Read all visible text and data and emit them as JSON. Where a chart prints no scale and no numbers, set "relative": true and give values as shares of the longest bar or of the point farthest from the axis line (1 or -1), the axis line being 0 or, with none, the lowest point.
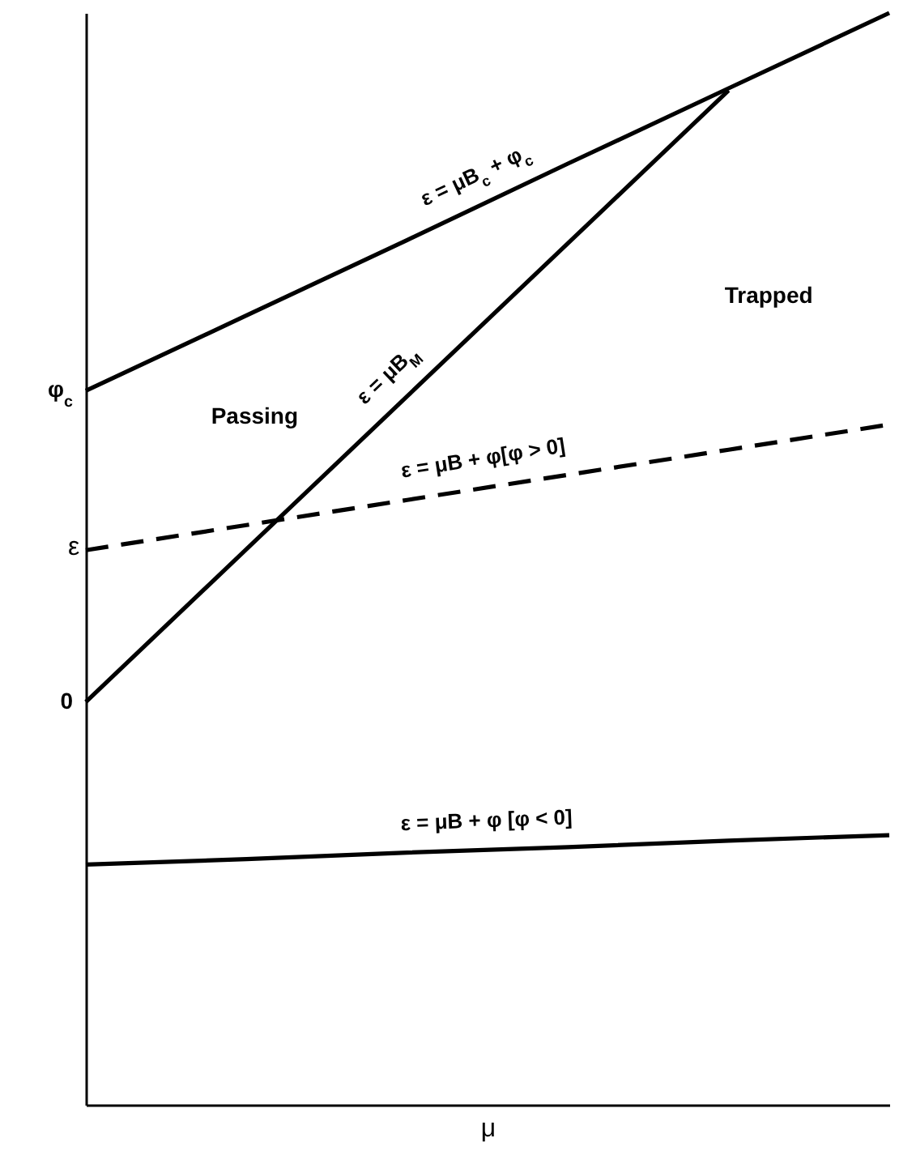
{
  "chart_data": {
    "type": "line",
    "relative": true,
    "xlabel": "μ",
    "ylabel": "ε",
    "categories": [
      null,
      null,
      null,
      null,
      null,
      null
    ],
    "series": [
      {
        "name": "ε = μB$_{c}$ + φ$_{c}$",
        "color": "#000000",
        "line_style": "solid",
        "values": [
          0.654,
          0.723,
          0.792,
          0.862,
          0.931,
          1.0
        ]
      },
      {
        "name": "ε = μB$_{M}$",
        "color": "#000000",
        "line_style": "solid",
        "values": [
          0.369,
          0.509,
          0.649,
          0.789,
          0.929,
          null
        ]
      },
      {
        "name": "ε = μB + φ[φ > 0]",
        "color": "#000000",
        "line_style": "dashed",
        "values": [
          0.508,
          0.531,
          0.554,
          0.577,
          0.6,
          0.623
        ]
      },
      {
        "name": "ε = μB + φ [φ < 0]",
        "color": "#000000",
        "line_style": "solid",
        "values": [
          0.22,
          0.225,
          0.231,
          0.236,
          0.242,
          0.247
        ]
      }
    ],
    "annotations": [
      "φ$_{c}$",
      "0",
      "Passing",
      "Trapped"
    ]
  }
}
